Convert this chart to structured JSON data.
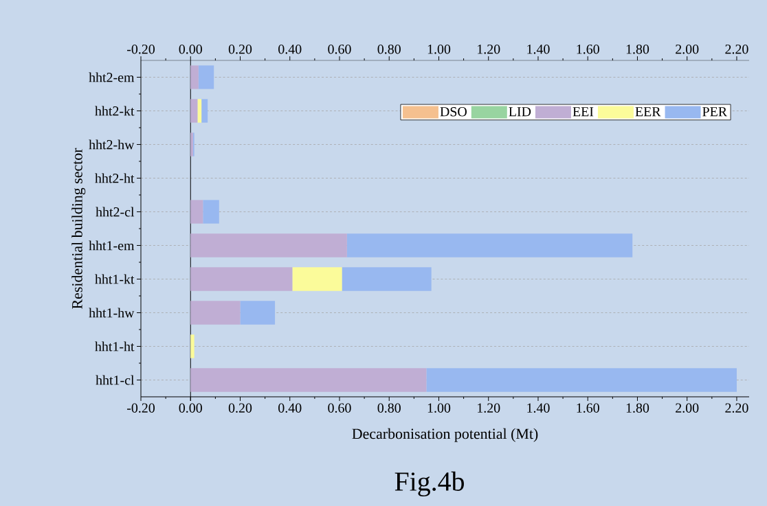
{
  "chart_data": {
    "type": "bar",
    "orientation": "horizontal",
    "stacked": true,
    "xlabel": "Decarbonisation potential (Mt)",
    "ylabel": "Residential building sector",
    "annotations": [
      "Fig.4b"
    ],
    "categories": [
      "hht2-em",
      "hht2-kt",
      "hht2-hw",
      "hht2-ht",
      "hht2-cl",
      "hht1-em",
      "hht1-kt",
      "hht1-hw",
      "hht1-ht",
      "hht1-cl"
    ],
    "series": [
      {
        "name": "DSO",
        "color": "#f5c08f",
        "values": [
          0,
          0,
          0,
          0,
          0,
          0,
          0,
          0,
          0,
          0
        ]
      },
      {
        "name": "LID",
        "color": "#98d4a0",
        "values": [
          0,
          0,
          0,
          0,
          0,
          0,
          0,
          0,
          0,
          0
        ]
      },
      {
        "name": "EEI",
        "color": "#c0aed4",
        "values": [
          0.032,
          0.028,
          0.01,
          null,
          0.05,
          0.63,
          0.41,
          0.2,
          0,
          0.95
        ]
      },
      {
        "name": "EER",
        "color": "#fbfb9a",
        "values": [
          0,
          0.016,
          0,
          0,
          0,
          0,
          0.2,
          0,
          0.015,
          0
        ]
      },
      {
        "name": "PER",
        "color": "#98b8f0",
        "values": [
          0.062,
          0.025,
          0.005,
          0,
          0.065,
          1.15,
          0.36,
          0.14,
          0,
          1.25
        ]
      }
    ],
    "xlim": [
      -0.2,
      2.25
    ],
    "xticks": [
      {
        "value": -0.2,
        "label": "-0.20"
      },
      {
        "value": 0,
        "label": "0.00"
      },
      {
        "value": 0.2,
        "label": "0.20"
      },
      {
        "value": 0.4,
        "label": "0.40"
      },
      {
        "value": 0.6,
        "label": "0.60"
      },
      {
        "value": 0.8,
        "label": "0.80"
      },
      {
        "value": 1.0,
        "label": "1.00"
      },
      {
        "value": 1.2,
        "label": "1.20"
      },
      {
        "value": 1.4,
        "label": "1.40"
      },
      {
        "value": 1.6,
        "label": "1.60"
      },
      {
        "value": 1.8,
        "label": "1.80"
      },
      {
        "value": 2.0,
        "label": "2.00"
      },
      {
        "value": 2.2,
        "label": "2.20"
      }
    ],
    "x2lim": [
      -0.2,
      2.25
    ],
    "x2ticks": [
      {
        "value": -0.2,
        "label": "-0.20"
      },
      {
        "value": 0,
        "label": "0.00"
      },
      {
        "value": 0.2,
        "label": "0.20"
      },
      {
        "value": 0.4,
        "label": "0.40"
      },
      {
        "value": 0.6,
        "label": "0.60"
      },
      {
        "value": 0.8,
        "label": "0.80"
      },
      {
        "value": 1.0,
        "label": "1.00"
      },
      {
        "value": 1.2,
        "label": "1.20"
      },
      {
        "value": 1.4,
        "label": "1.40"
      },
      {
        "value": 1.6,
        "label": "1.60"
      },
      {
        "value": 1.8,
        "label": "1.80"
      },
      {
        "value": 2.0,
        "label": "2.00"
      },
      {
        "value": 2.2,
        "label": "2.20"
      }
    ],
    "grid": "y",
    "legend": "top right"
  }
}
